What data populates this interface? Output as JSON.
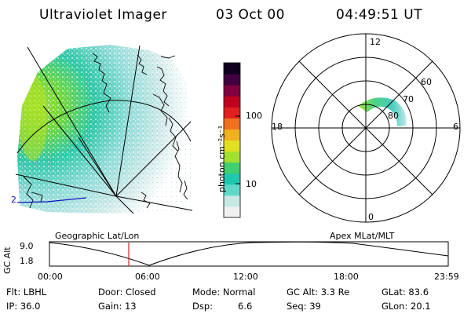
{
  "header": {
    "title": "Ultraviolet Imager",
    "date": "03 Oct 00",
    "time": "04:49:51 UT"
  },
  "map": {
    "meridian_label": "2"
  },
  "colorbar": {
    "unit_label": "photon cm⁻²s⁻¹",
    "tick_100": "100",
    "tick_10": "10",
    "scale": "log",
    "colors": [
      "#f0f0f0",
      "#c8e8e4",
      "#60d8c8",
      "#20c8b0",
      "#40d070",
      "#a0e030",
      "#e0e020",
      "#f0b020",
      "#f07020",
      "#e02020",
      "#c00020",
      "#800040",
      "#400040",
      "#100020"
    ]
  },
  "polar": {
    "label_12": "12",
    "label_6": "6",
    "label_18": "18",
    "label_0": "0",
    "label_60": "60",
    "label_70": "70",
    "label_80": "80"
  },
  "timeline": {
    "left_label": "Geographic Lat/Lon",
    "right_label": "Apex MLat/MLT",
    "axis_title": "GC Alt",
    "y_top": "9.0",
    "y_bottom": "1.8",
    "x_ticks": [
      "00:00",
      "06:00",
      "12:00",
      "18:00",
      "23:59"
    ],
    "marker_color": "#d02020"
  },
  "info": {
    "flt": "Flt: LBHL",
    "ip": "IP: 36.0",
    "door": "Door: Closed",
    "gain": "Gain: 13",
    "mode": "Mode: Normal",
    "dsp_label": "Dsp:",
    "dsp_value": "6.6",
    "gc_alt": "GC Alt: 3.3 Re",
    "seq": "Seq: 39",
    "glat": "GLat: 83.6",
    "glon": "GLon: 20.1"
  }
}
